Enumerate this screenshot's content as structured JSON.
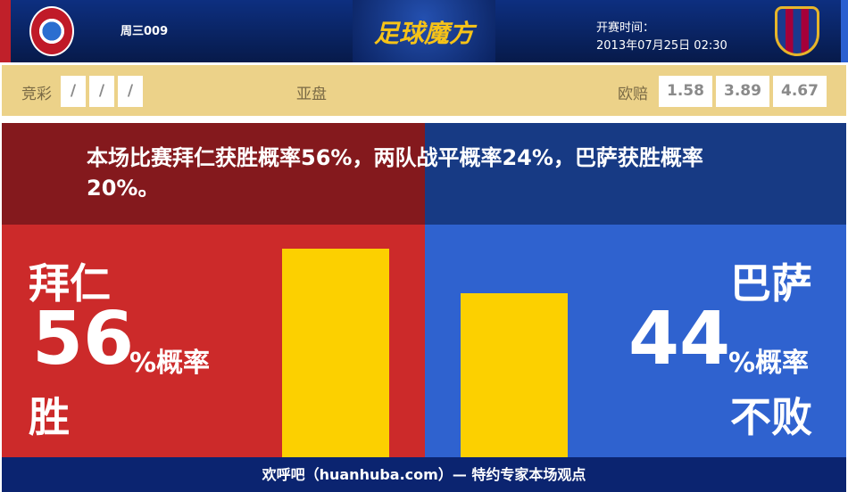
{
  "header": {
    "match_no": "周三009",
    "logo_text": "足球魔方",
    "kickoff_label": "开赛时间：",
    "kickoff_time": "2013年07月25日 02:30"
  },
  "odds": {
    "jingcai_label": "竞彩",
    "jingcai": [
      "/",
      "/",
      "/"
    ],
    "asian_label": "亚盘",
    "euro_label": "欧赔",
    "euro": [
      "1.58",
      "3.89",
      "4.67"
    ]
  },
  "summary": "本场比赛拜仁获胜概率56%，两队战平概率24%，巴萨获胜概率20%。",
  "home": {
    "name": "拜仁",
    "percent": "56",
    "unit": "%概率",
    "outcome": "胜",
    "value": 56
  },
  "away": {
    "name": "巴萨",
    "percent": "44",
    "unit": "%概率",
    "outcome": "不败",
    "value": 44
  },
  "colors": {
    "home": "#cc2a2a",
    "away": "#2f62cf",
    "bar": "#fcd000"
  },
  "footer": "欢呼吧（huanhuba.com）— 特约专家本场观点"
}
